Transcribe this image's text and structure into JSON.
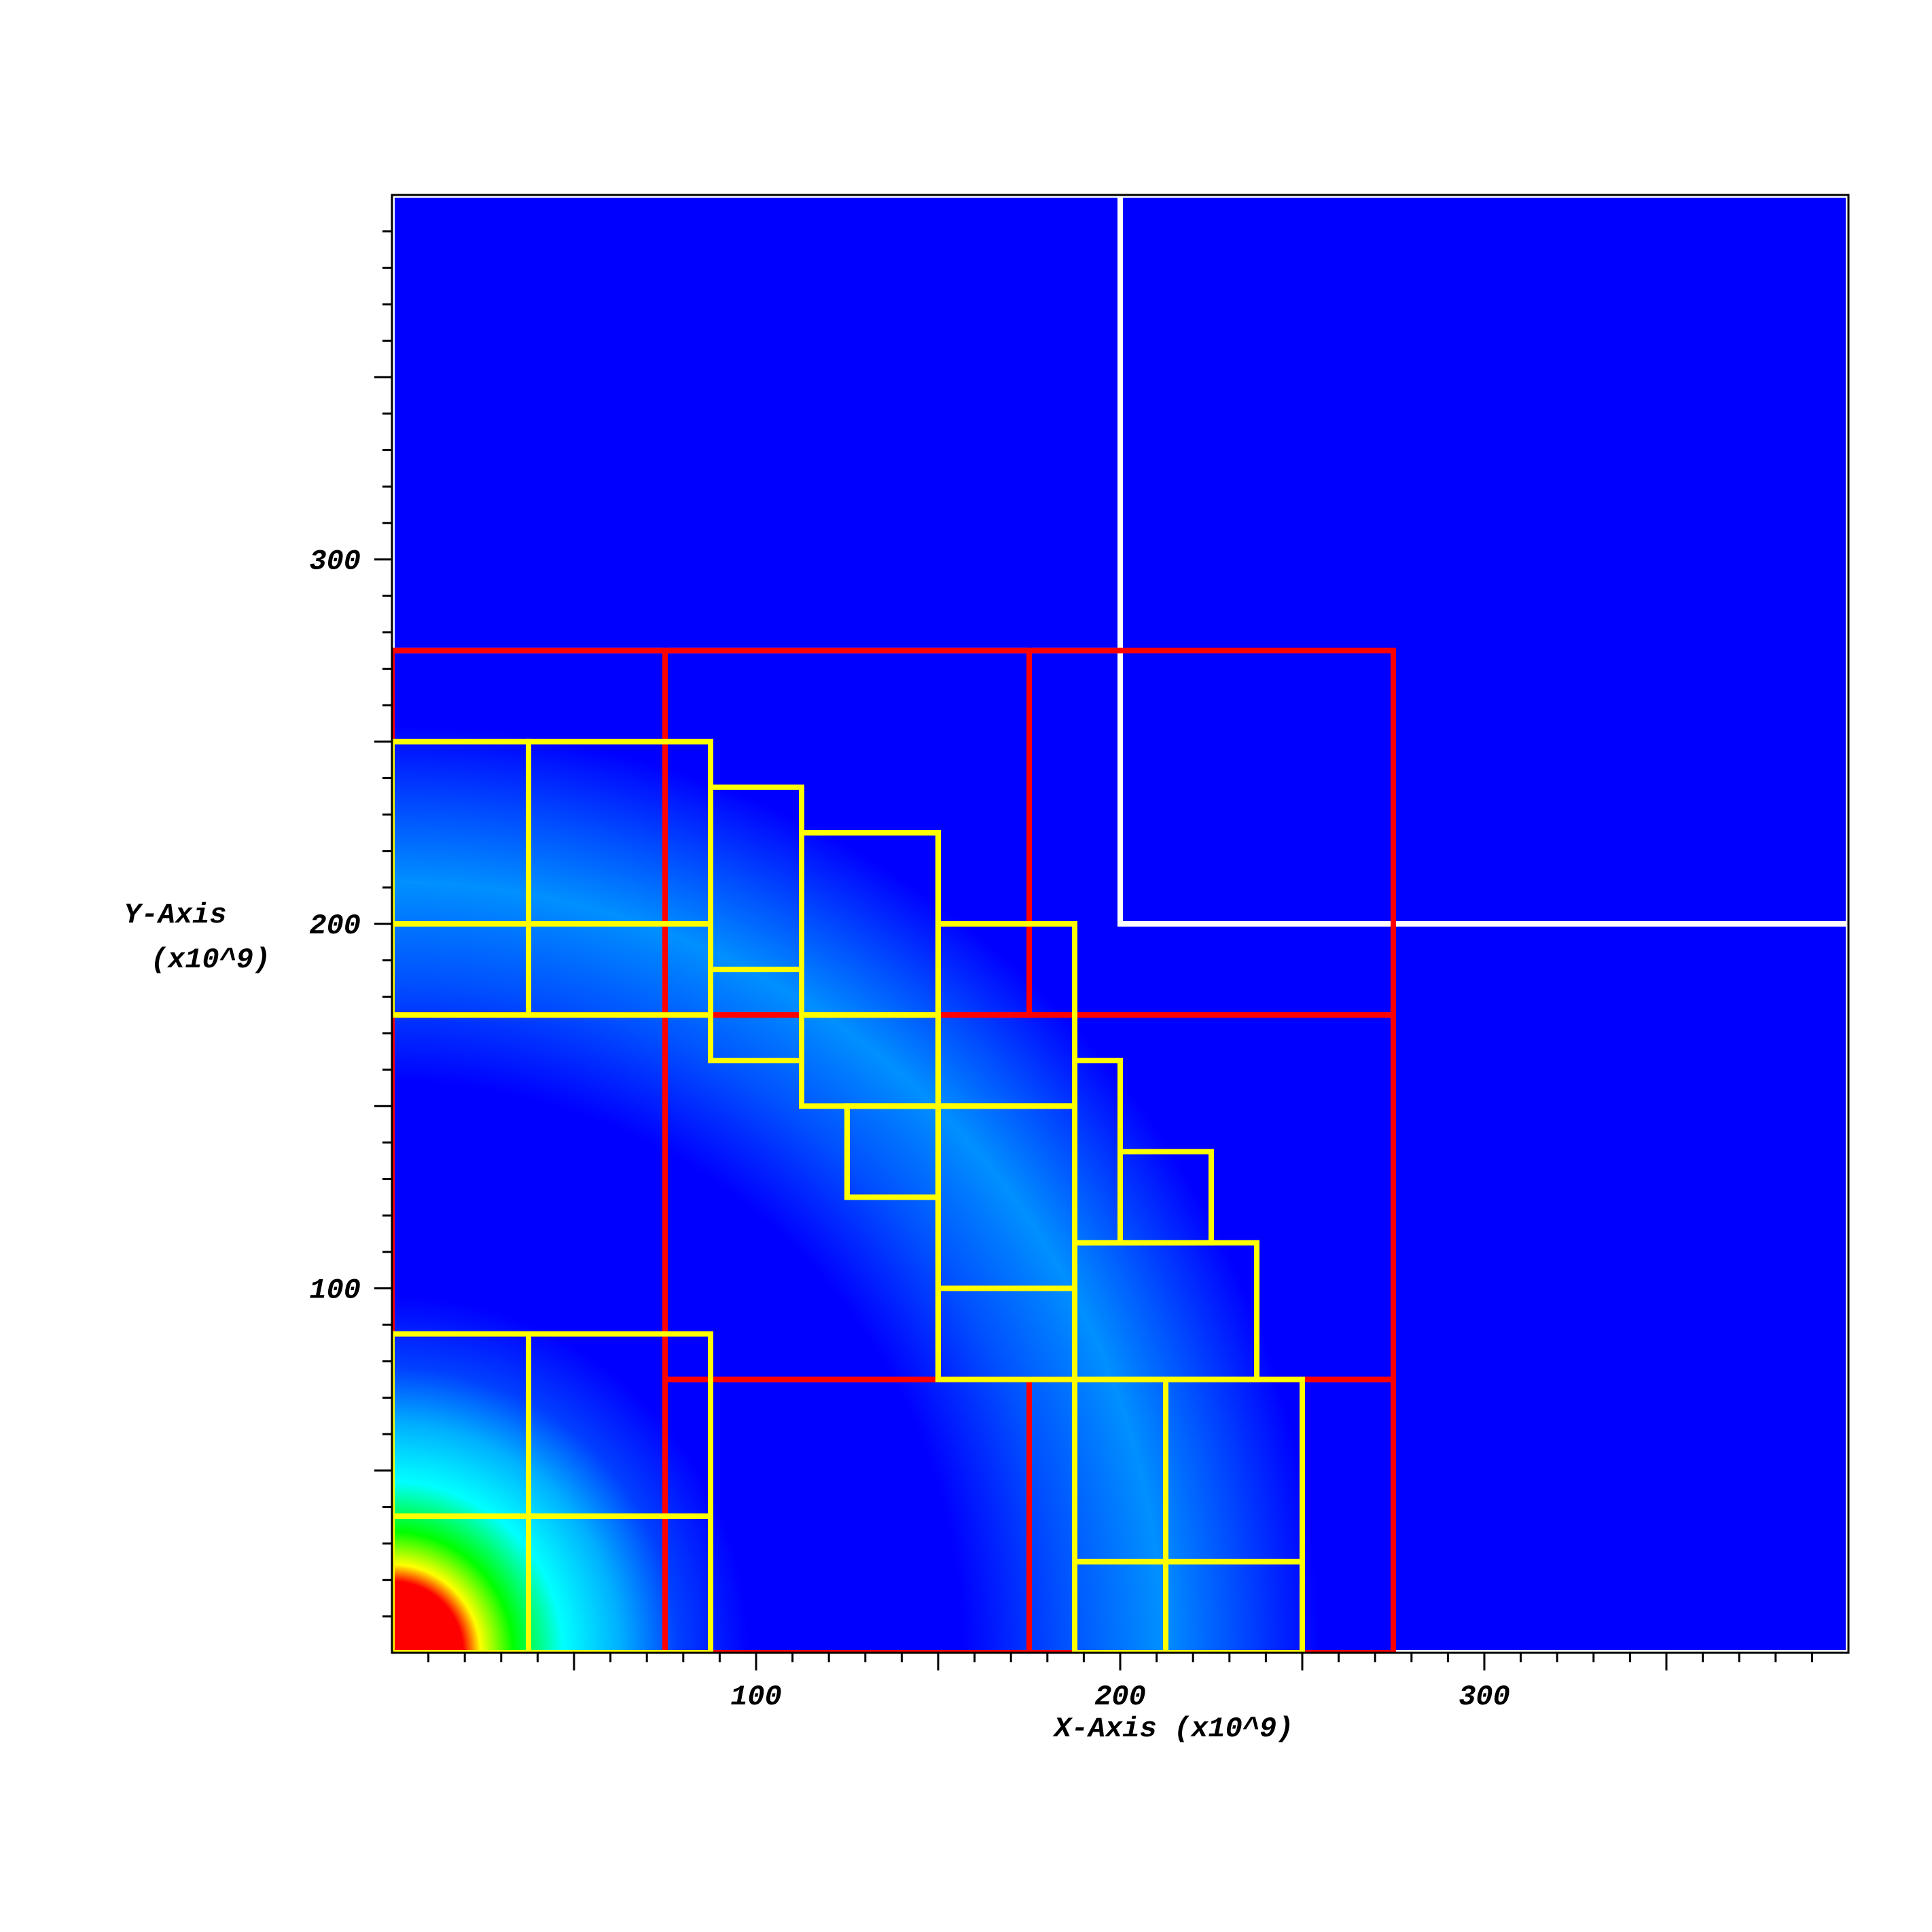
{
  "chart_data": {
    "type": "heatmap",
    "title": "",
    "xlabel": "X-Axis (x10^9)",
    "ylabel_lines": [
      "Y-Axis",
      "(x10^9)"
    ],
    "xlim": [
      0,
      400
    ],
    "ylim": [
      0,
      400
    ],
    "x_ticks": [
      100,
      200,
      300
    ],
    "y_ticks": [
      100,
      200,
      300
    ],
    "grid": false,
    "field": {
      "description_colors": [
        "#ff0000",
        "#ffff00",
        "#00ff00",
        "#00ffff",
        "#0080ff",
        "#0000ff"
      ],
      "background_color": "#0000ff",
      "center": [
        0,
        0
      ],
      "ring_radius": 220
    },
    "colors": {
      "level0": "#ffffff",
      "level1": "#ff0000",
      "level2": "#ffff00"
    },
    "level0_patches": [
      {
        "x": [
          0,
          200
        ],
        "y": [
          275,
          400
        ]
      },
      {
        "x": [
          200,
          400
        ],
        "y": [
          200,
          400
        ]
      },
      {
        "x": [
          275,
          400
        ],
        "y": [
          0,
          200
        ]
      }
    ],
    "level1_patches": [
      {
        "x": [
          0,
          75
        ],
        "y": [
          175,
          275
        ]
      },
      {
        "x": [
          75,
          175
        ],
        "y": [
          175,
          275
        ]
      },
      {
        "x": [
          175,
          275
        ],
        "y": [
          175,
          275
        ]
      },
      {
        "x": [
          0,
          75
        ],
        "y": [
          0,
          175
        ]
      },
      {
        "x": [
          75,
          275
        ],
        "y": [
          75,
          175
        ]
      },
      {
        "x": [
          175,
          275
        ],
        "y": [
          0,
          75
        ]
      },
      {
        "x": [
          75,
          175
        ],
        "y": [
          0,
          75
        ]
      }
    ],
    "level2_patches": [
      {
        "x": [
          0,
          37.5
        ],
        "y": [
          175,
          200
        ]
      },
      {
        "x": [
          37.5,
          87.5
        ],
        "y": [
          175,
          200
        ]
      },
      {
        "x": [
          0,
          37.5
        ],
        "y": [
          200,
          250
        ]
      },
      {
        "x": [
          37.5,
          87.5
        ],
        "y": [
          200,
          250
        ]
      },
      {
        "x": [
          87.5,
          112.5
        ],
        "y": [
          162.5,
          187.5
        ]
      },
      {
        "x": [
          87.5,
          112.5
        ],
        "y": [
          187.5,
          237.5
        ]
      },
      {
        "x": [
          112.5,
          150
        ],
        "y": [
          150,
          175
        ]
      },
      {
        "x": [
          112.5,
          150
        ],
        "y": [
          175,
          225
        ]
      },
      {
        "x": [
          125,
          150
        ],
        "y": [
          125,
          150
        ]
      },
      {
        "x": [
          150,
          187.5
        ],
        "y": [
          75,
          100
        ]
      },
      {
        "x": [
          150,
          187.5
        ],
        "y": [
          100,
          150
        ]
      },
      {
        "x": [
          150,
          187.5
        ],
        "y": [
          150,
          200
        ]
      },
      {
        "x": [
          187.5,
          200
        ],
        "y": [
          112.5,
          162.5
        ]
      },
      {
        "x": [
          200,
          225
        ],
        "y": [
          112.5,
          137.5
        ]
      },
      {
        "x": [
          187.5,
          237.5
        ],
        "y": [
          75,
          112.5
        ]
      },
      {
        "x": [
          187.5,
          212.5
        ],
        "y": [
          0,
          25
        ]
      },
      {
        "x": [
          212.5,
          250
        ],
        "y": [
          0,
          25
        ]
      },
      {
        "x": [
          187.5,
          212.5
        ],
        "y": [
          25,
          75
        ]
      },
      {
        "x": [
          212.5,
          250
        ],
        "y": [
          25,
          75
        ]
      },
      {
        "x": [
          0,
          37.5
        ],
        "y": [
          0,
          37.5
        ]
      },
      {
        "x": [
          37.5,
          87.5
        ],
        "y": [
          0,
          37.5
        ]
      },
      {
        "x": [
          0,
          37.5
        ],
        "y": [
          37.5,
          87.5
        ]
      },
      {
        "x": [
          37.5,
          87.5
        ],
        "y": [
          37.5,
          87.5
        ]
      }
    ]
  }
}
